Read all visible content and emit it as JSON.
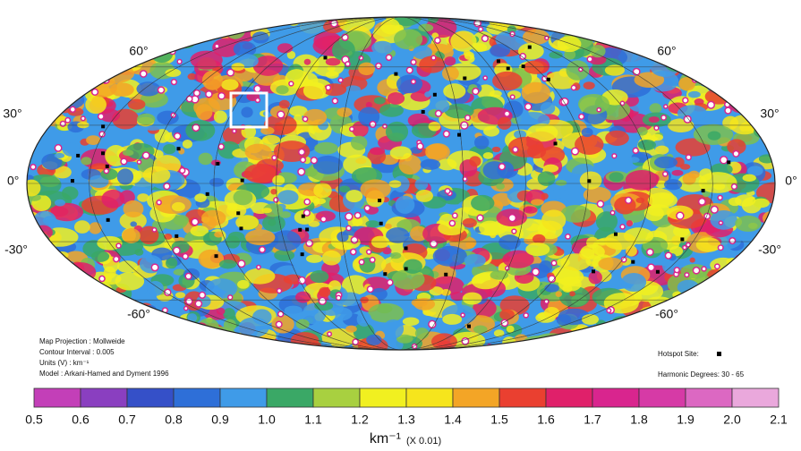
{
  "map": {
    "lat_labels_left": [
      "60°",
      "30°",
      "0°",
      "-30°",
      "-60°"
    ],
    "lat_labels_right": [
      "60°",
      "30°",
      "0°",
      "-30°",
      "-60°"
    ],
    "info": [
      "Map Projection : Mollweide",
      "Contour Interval : 0.005",
      "Units (V) : km⁻¹",
      "Model : Arkani-Hamed and Dyment 1996"
    ],
    "hotspot_label": "Hotspot Site:",
    "harmonic_label": "Harmonic Degrees: 30 - 65"
  },
  "colorbar": {
    "ticks": [
      "0.5",
      "0.6",
      "0.7",
      "0.8",
      "0.9",
      "1.0",
      "1.1",
      "1.2",
      "1.3",
      "1.4",
      "1.5",
      "1.6",
      "1.7",
      "1.8",
      "1.9",
      "2.0",
      "2.1"
    ],
    "colors": [
      "#c33fb8",
      "#8a3fc0",
      "#3550c8",
      "#2e6fd8",
      "#3f9be8",
      "#3aa866",
      "#a8d040",
      "#f1f020",
      "#f6e51c",
      "#f3a526",
      "#ea4030",
      "#e0206a",
      "#d9258e",
      "#d63aa6",
      "#dc68c2",
      "#eaa8dc"
    ],
    "unit": "km⁻¹",
    "scale": "(X 0.01)"
  }
}
